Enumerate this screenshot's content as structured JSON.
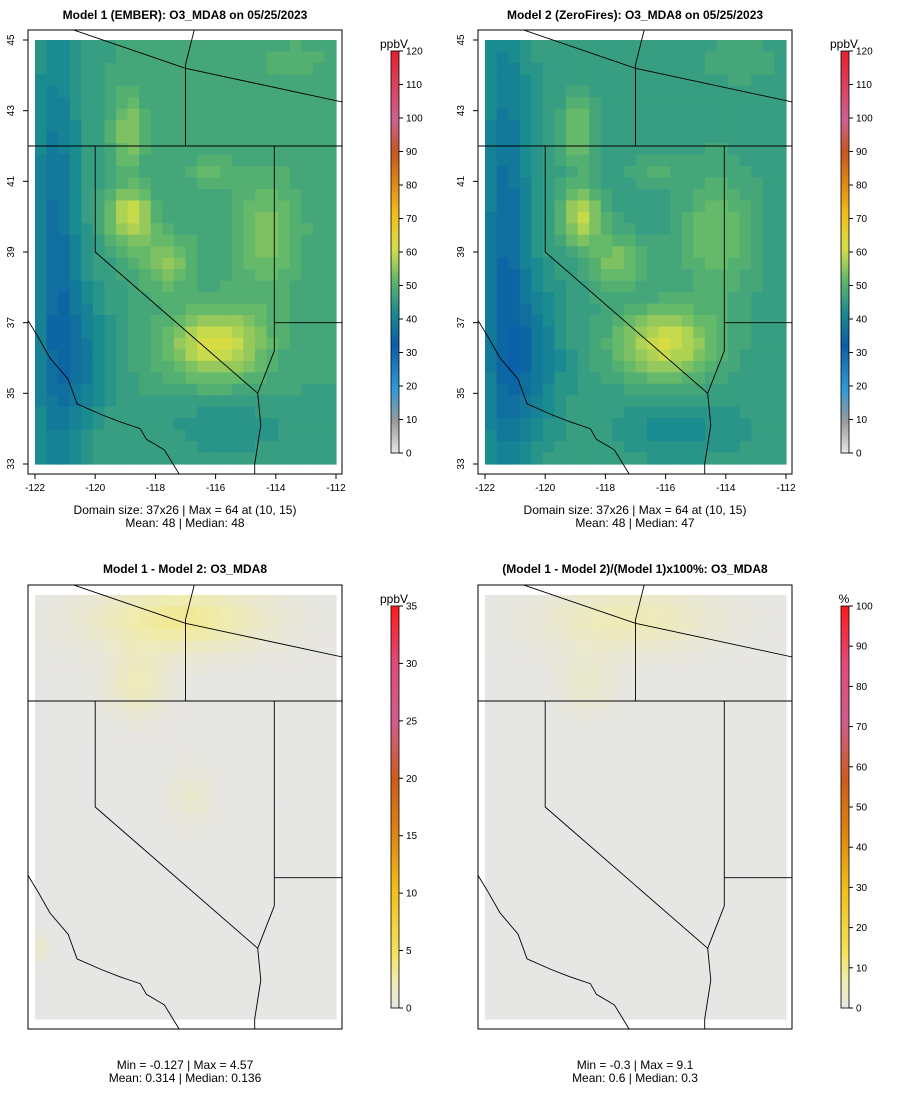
{
  "chart_data": [
    {
      "type": "heatmap",
      "title": "Model 1 (EMBER): O3_MDA8 on 05/25/2023",
      "unit": "ppbV",
      "x_ticks": [
        "-122",
        "-120",
        "-118",
        "-116",
        "-114",
        "-112"
      ],
      "y_ticks": [
        "33",
        "35",
        "37",
        "39",
        "41",
        "43",
        "45"
      ],
      "xlim": [
        -122,
        -112
      ],
      "ylim": [
        33,
        45
      ],
      "colorbar": {
        "min": 0,
        "max": 120,
        "ticks": [
          "0",
          "10",
          "20",
          "30",
          "40",
          "50",
          "60",
          "70",
          "80",
          "90",
          "100",
          "110",
          "120"
        ]
      },
      "grid": {
        "nx": 26,
        "ny": 37
      },
      "stats_line1": "Domain size: 37x26 | Max = 64 at (10, 15)",
      "stats_line2": "Mean: 48 |  Median: 48",
      "background_value": 47,
      "field": [
        {
          "lon": -116.0,
          "lat": 36.4,
          "sx": 1.6,
          "sy": 1.0,
          "amp": 15
        },
        {
          "lon": -118.8,
          "lat": 40.0,
          "sx": 0.7,
          "sy": 0.8,
          "amp": 14
        },
        {
          "lon": -118.9,
          "lat": 42.4,
          "sx": 0.5,
          "sy": 1.0,
          "amp": 9
        },
        {
          "lon": -117.6,
          "lat": 38.7,
          "sx": 0.9,
          "sy": 0.8,
          "amp": 8
        },
        {
          "lon": -114.3,
          "lat": 39.5,
          "sx": 1.2,
          "sy": 1.8,
          "amp": 7
        },
        {
          "lon": -116.3,
          "lat": 41.3,
          "sx": 0.8,
          "sy": 0.4,
          "amp": 5
        },
        {
          "lon": -121.3,
          "lat": 38.5,
          "sx": 0.8,
          "sy": 7.0,
          "amp": -11
        },
        {
          "lon": -120.4,
          "lat": 36.0,
          "sx": 1.0,
          "sy": 2.0,
          "amp": -7
        },
        {
          "lon": -115.6,
          "lat": 34.0,
          "sx": 2.0,
          "sy": 0.8,
          "amp": -4
        },
        {
          "lon": -113.5,
          "lat": 44.4,
          "sx": 1.5,
          "sy": 0.7,
          "amp": 3
        }
      ]
    },
    {
      "type": "heatmap",
      "title": "Model 2 (ZeroFires): O3_MDA8 on 05/25/2023",
      "unit": "ppbV",
      "x_ticks": [
        "-122",
        "-120",
        "-118",
        "-116",
        "-114",
        "-112"
      ],
      "y_ticks": [
        "33",
        "35",
        "37",
        "39",
        "41",
        "43",
        "45"
      ],
      "xlim": [
        -122,
        -112
      ],
      "ylim": [
        33,
        45
      ],
      "colorbar": {
        "min": 0,
        "max": 120,
        "ticks": [
          "0",
          "10",
          "20",
          "30",
          "40",
          "50",
          "60",
          "70",
          "80",
          "90",
          "100",
          "110",
          "120"
        ]
      },
      "grid": {
        "nx": 26,
        "ny": 37
      },
      "stats_line1": "Domain size: 37x26 | Max = 64 at (10, 15)",
      "stats_line2": "Mean: 48 |  Median: 47",
      "background_value": 46,
      "field": [
        {
          "lon": -116.0,
          "lat": 36.4,
          "sx": 1.6,
          "sy": 1.0,
          "amp": 15
        },
        {
          "lon": -118.8,
          "lat": 40.0,
          "sx": 0.7,
          "sy": 0.8,
          "amp": 13
        },
        {
          "lon": -118.9,
          "lat": 42.4,
          "sx": 0.5,
          "sy": 1.0,
          "amp": 8
        },
        {
          "lon": -117.6,
          "lat": 38.7,
          "sx": 0.9,
          "sy": 0.8,
          "amp": 8
        },
        {
          "lon": -114.3,
          "lat": 39.5,
          "sx": 1.2,
          "sy": 1.8,
          "amp": 7
        },
        {
          "lon": -116.3,
          "lat": 41.3,
          "sx": 0.8,
          "sy": 0.4,
          "amp": 4
        },
        {
          "lon": -121.3,
          "lat": 38.5,
          "sx": 0.8,
          "sy": 7.0,
          "amp": -11
        },
        {
          "lon": -120.4,
          "lat": 36.0,
          "sx": 1.0,
          "sy": 2.0,
          "amp": -7
        },
        {
          "lon": -115.6,
          "lat": 34.0,
          "sx": 2.0,
          "sy": 0.8,
          "amp": -4
        },
        {
          "lon": -113.5,
          "lat": 44.4,
          "sx": 1.5,
          "sy": 0.7,
          "amp": 2
        }
      ]
    },
    {
      "type": "heatmap",
      "title": "Model 1 - Model 2: O3_MDA8",
      "unit": "ppbV",
      "colorbar": {
        "min": 0,
        "max": 35,
        "ticks": [
          "0",
          "5",
          "10",
          "15",
          "20",
          "25",
          "30",
          "35"
        ]
      },
      "grid": {
        "nx": 26,
        "ny": 37
      },
      "stats_line1": "Min = -0.127 | Max = 4.57",
      "stats_line2": "Mean: 0.314 |  Median: 0.136",
      "background_value": 0.1,
      "field": [
        {
          "lon": -117.2,
          "lat": 44.3,
          "sx": 2.8,
          "sy": 0.9,
          "amp": 3.2
        },
        {
          "lon": -118.6,
          "lat": 42.5,
          "sx": 1.0,
          "sy": 0.9,
          "amp": 1.8
        },
        {
          "lon": -116.8,
          "lat": 39.3,
          "sx": 0.7,
          "sy": 0.8,
          "amp": 1.0
        },
        {
          "lon": -121.8,
          "lat": 35.0,
          "sx": 0.3,
          "sy": 0.3,
          "amp": 1.2
        }
      ]
    },
    {
      "type": "heatmap",
      "title": "(Model 1 - Model 2)/(Model 1)x100%: O3_MDA8",
      "unit": "%",
      "colorbar": {
        "min": 0,
        "max": 100,
        "ticks": [
          "0",
          "10",
          "20",
          "30",
          "40",
          "50",
          "60",
          "70",
          "80",
          "90",
          "100"
        ]
      },
      "grid": {
        "nx": 26,
        "ny": 37
      },
      "stats_line1": "Min = -0.3 | Max = 9.1",
      "stats_line2": "Mean: 0.6 |  Median: 0.3",
      "background_value": 0.2,
      "field": [
        {
          "lon": -117.2,
          "lat": 44.3,
          "sx": 2.8,
          "sy": 0.9,
          "amp": 6.0
        },
        {
          "lon": -118.6,
          "lat": 42.5,
          "sx": 1.0,
          "sy": 0.9,
          "amp": 3.0
        }
      ]
    }
  ],
  "palette": {
    "stops_fraction": [
      0,
      0.08,
      0.16,
      0.27,
      0.35,
      0.43,
      0.51,
      0.59,
      0.67,
      0.75,
      0.83,
      1.0
    ],
    "stops_color": [
      "#e9e9e9",
      "#9a9a9a",
      "#2f9ad8",
      "#0a5ea8",
      "#1a8c90",
      "#5fb76b",
      "#d5df48",
      "#f2c11a",
      "#e28a14",
      "#c9551f",
      "#d0608f",
      "#e8202d"
    ]
  },
  "diff_palette": {
    "stops_fraction": [
      0,
      0.07,
      0.14,
      0.29,
      0.43,
      0.57,
      0.71,
      0.86,
      1.0
    ],
    "stops_color": [
      "#e6e6e6",
      "#f0ecb0",
      "#f3e25a",
      "#f2c11a",
      "#e2870f",
      "#cf5b1a",
      "#d25c8c",
      "#e24a78",
      "#ff1a1a"
    ]
  }
}
